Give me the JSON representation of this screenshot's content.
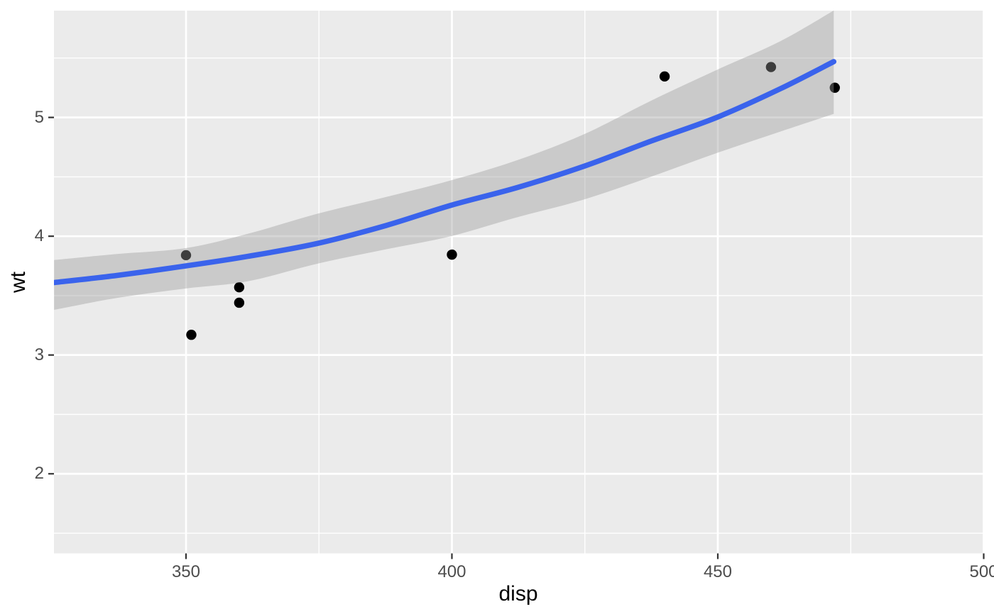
{
  "chart_data": {
    "type": "scatter",
    "title": "",
    "xlabel": "disp",
    "ylabel": "wt",
    "legend": "none",
    "grid": "white major and minor gridlines on grey panel",
    "x_axis": {
      "range": [
        325.17,
        500
      ],
      "ticks": [
        350,
        400,
        450,
        500
      ],
      "tick_labels": [
        "350",
        "400",
        "450",
        "500"
      ],
      "minor_ticks": [
        375,
        425,
        475
      ]
    },
    "y_axis": {
      "range": [
        1.33,
        5.899
      ],
      "ticks": [
        2,
        3,
        4,
        5
      ],
      "tick_labels": [
        "2",
        "3",
        "4",
        "5"
      ],
      "minor_ticks": [
        1.5,
        2.5,
        3.5,
        4.5,
        5.5
      ]
    },
    "points": [
      {
        "disp": 350,
        "wt": 3.84
      },
      {
        "disp": 351,
        "wt": 3.17
      },
      {
        "disp": 360,
        "wt": 3.57
      },
      {
        "disp": 360,
        "wt": 3.44
      },
      {
        "disp": 400,
        "wt": 3.845
      },
      {
        "disp": 440,
        "wt": 5.345
      },
      {
        "disp": 460,
        "wt": 5.424
      },
      {
        "disp": 472,
        "wt": 5.25
      }
    ],
    "smooth": {
      "method": "loess with confidence ribbon",
      "x": [
        325.2,
        337.0,
        350.0,
        361.6,
        374.8,
        387.6,
        399.8,
        412.3,
        424.9,
        437.4,
        449.8,
        461.7,
        471.8
      ],
      "y_fit": [
        3.61,
        3.67,
        3.75,
        3.83,
        3.94,
        4.09,
        4.26,
        4.41,
        4.59,
        4.8,
        5.0,
        5.24,
        5.47
      ],
      "ci_upper": [
        3.8,
        3.85,
        3.9,
        4.02,
        4.19,
        4.33,
        4.47,
        4.64,
        4.86,
        5.14,
        5.4,
        5.64,
        5.9
      ],
      "ci_lower": [
        3.38,
        3.48,
        3.56,
        3.62,
        3.77,
        3.89,
        4.0,
        4.16,
        4.31,
        4.5,
        4.7,
        4.88,
        5.03
      ]
    },
    "colors": {
      "outer_background": "#FFFFFF",
      "panel_background": "#EBEBEB",
      "gridline": "#FFFFFF",
      "smooth_line": "#3A63EC",
      "ribbon_fill_rgba": "rgba(153,153,153,0.4)",
      "point": "#000000",
      "tick_mark": "#333333",
      "tick_label": "#4D4D4D",
      "axis_title": "#000000"
    }
  }
}
